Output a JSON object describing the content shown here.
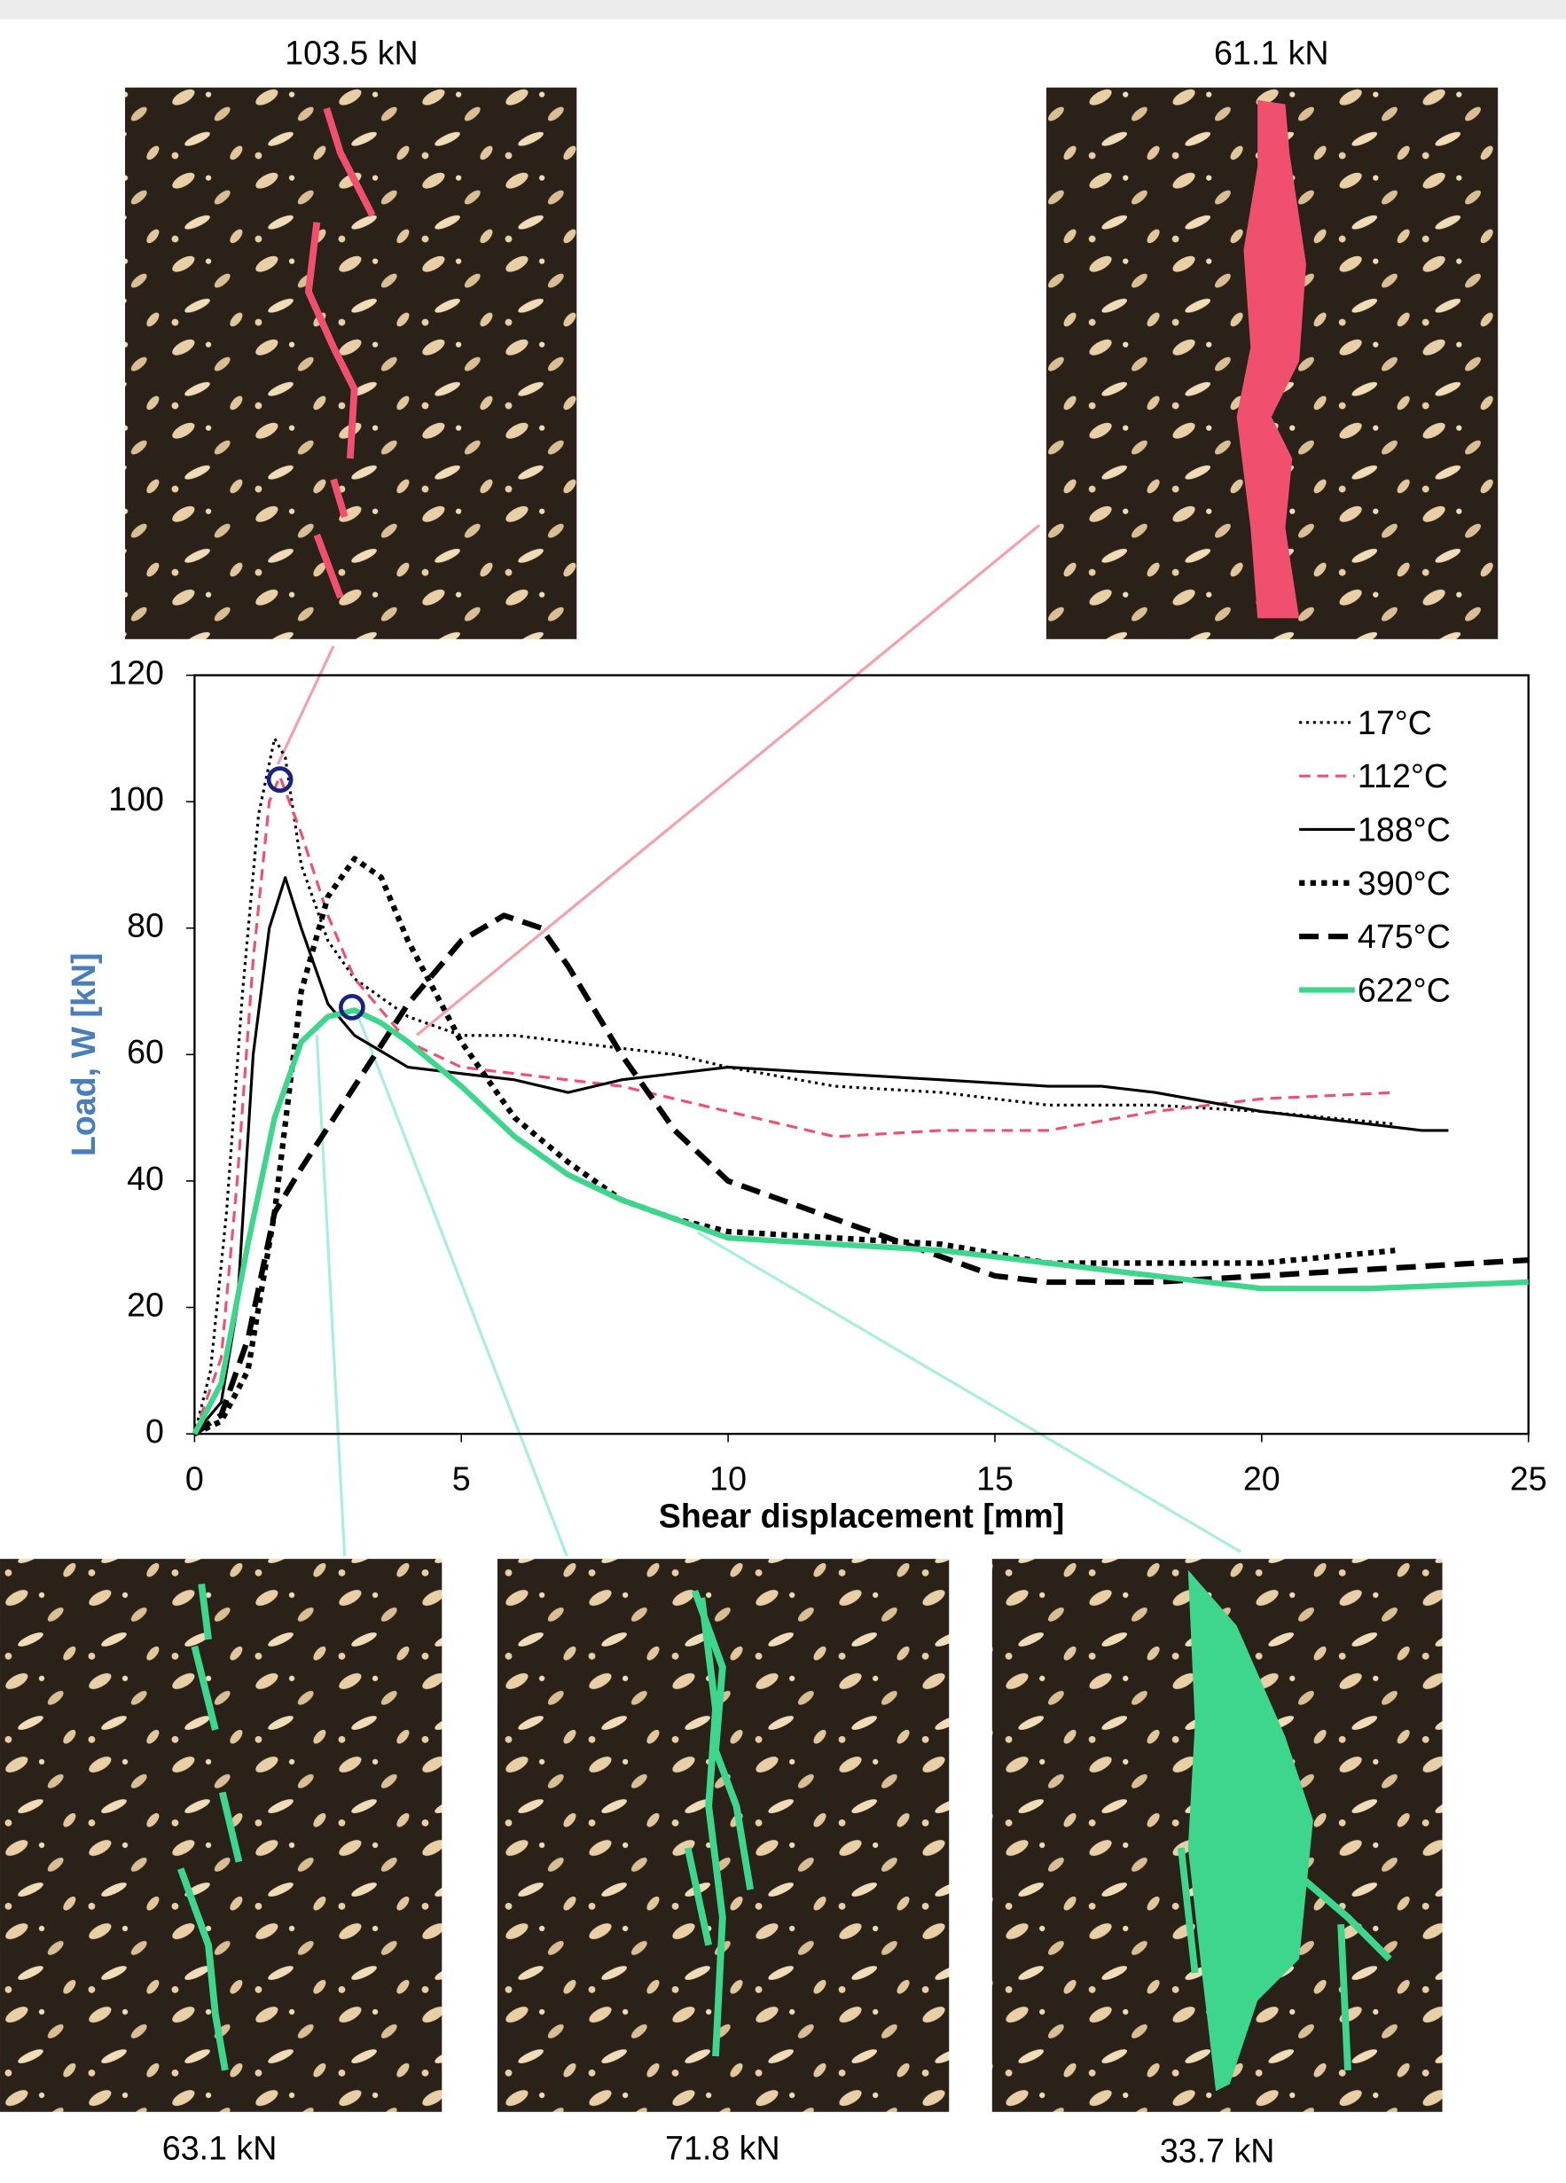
{
  "chart_data": {
    "type": "line",
    "ylabel": "Load, W [kN]",
    "xlabel": "Shear displacement [mm]",
    "xlim": [
      0,
      25
    ],
    "xticks": [
      0,
      5,
      10,
      15,
      20,
      25
    ],
    "ylim": [
      0,
      120
    ],
    "yticks": [
      0,
      20,
      40,
      60,
      80,
      100,
      120
    ],
    "grid": false,
    "legend": "upper right",
    "annotations": [
      "103.5 kN",
      "61.1 kN",
      "63.1 kN",
      "71.8 kN",
      "33.7 kN"
    ],
    "markers": [
      {
        "x": 1.6,
        "y": 103.5
      },
      {
        "x": 2.95,
        "y": 67.5
      }
    ],
    "series": [
      {
        "name": "17°C",
        "color": "#000000",
        "dash": "2,3",
        "width": 2,
        "x": [
          0,
          0.3,
          0.6,
          0.9,
          1.2,
          1.5,
          1.7,
          2,
          2.5,
          3,
          4,
          5,
          6,
          7,
          8,
          9,
          10,
          12,
          14,
          16,
          18,
          20,
          22.5
        ],
        "values": [
          0,
          10,
          35,
          70,
          98,
          110,
          107,
          90,
          78,
          72,
          66,
          63,
          63,
          62,
          61,
          60,
          58,
          55,
          54,
          52,
          52,
          51,
          49
        ]
      },
      {
        "name": "112°C",
        "color": "#f0506e",
        "dash": "8,5",
        "width": 2,
        "x": [
          0,
          0.5,
          0.8,
          1.1,
          1.4,
          1.6,
          2,
          2.5,
          3,
          4,
          5,
          6,
          8,
          10,
          12,
          14,
          16,
          18,
          20,
          22.5
        ],
        "values": [
          0,
          12,
          40,
          75,
          100,
          104,
          95,
          82,
          72,
          62,
          58,
          57,
          55,
          51,
          47,
          48,
          48,
          51,
          53,
          54
        ]
      },
      {
        "name": "188°C",
        "color": "#000000",
        "dash": "",
        "width": 2,
        "x": [
          0,
          0.5,
          0.8,
          1.1,
          1.4,
          1.7,
          2,
          2.5,
          3,
          4,
          5,
          6,
          7,
          8,
          10,
          12,
          14,
          16,
          17,
          18,
          20,
          22,
          23,
          23.5
        ],
        "values": [
          0,
          5,
          20,
          60,
          80,
          88,
          80,
          68,
          63,
          58,
          57,
          56,
          54,
          56,
          58,
          57,
          56,
          55,
          55,
          54,
          51,
          49,
          48,
          48
        ]
      },
      {
        "name": "390°C",
        "color": "#000000",
        "dash": "4,4",
        "width": 4,
        "x": [
          0,
          0.5,
          1,
          1.5,
          2,
          2.5,
          3,
          3.5,
          4,
          5,
          6,
          7,
          8,
          9,
          10,
          12,
          14,
          16,
          18,
          20,
          22.5
        ],
        "values": [
          0,
          2,
          10,
          35,
          70,
          85,
          91,
          88,
          78,
          62,
          50,
          43,
          37,
          34,
          32,
          31,
          30,
          27,
          27,
          27,
          29
        ]
      },
      {
        "name": "475°C",
        "color": "#000000",
        "dash": "14,7",
        "width": 4,
        "x": [
          0,
          0.5,
          1,
          1.5,
          2,
          3,
          4,
          5,
          5.8,
          6.5,
          7,
          8,
          9,
          10,
          12,
          14,
          15,
          16,
          18,
          20,
          22,
          25
        ],
        "values": [
          0,
          3,
          15,
          35,
          42,
          55,
          68,
          78,
          82,
          80,
          74,
          60,
          48,
          40,
          34,
          28,
          25,
          24,
          24,
          25,
          26,
          27.5
        ]
      },
      {
        "name": "622°C",
        "color": "#3dd68c",
        "dash": "",
        "width": 4,
        "x": [
          0,
          0.5,
          1,
          1.5,
          2,
          2.5,
          3,
          3.5,
          4,
          5,
          6,
          7,
          8,
          9,
          10,
          12,
          14,
          16,
          18,
          20,
          22,
          25
        ],
        "values": [
          0,
          8,
          30,
          50,
          62,
          66,
          67,
          65,
          62,
          55,
          47,
          41,
          37,
          34,
          31,
          30,
          29,
          27,
          25,
          23,
          23,
          24
        ]
      }
    ]
  }
}
